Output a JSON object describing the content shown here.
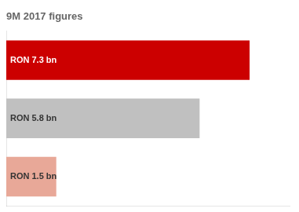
{
  "chart_data": {
    "type": "bar",
    "orientation": "horizontal",
    "title": "9M 2017 figures",
    "categories": [
      null,
      null,
      null
    ],
    "values": [
      7.3,
      5.8,
      1.5
    ],
    "value_labels": [
      "RON 7.3 bn",
      "RON 5.8 bn",
      "RON 1.5 bn"
    ],
    "data_labels": true,
    "colors": [
      "#cc0000",
      "#c0c0c0",
      "#e8a898"
    ],
    "xlim": [
      0,
      8.5
    ],
    "tick_labels": false,
    "grid": false
  }
}
